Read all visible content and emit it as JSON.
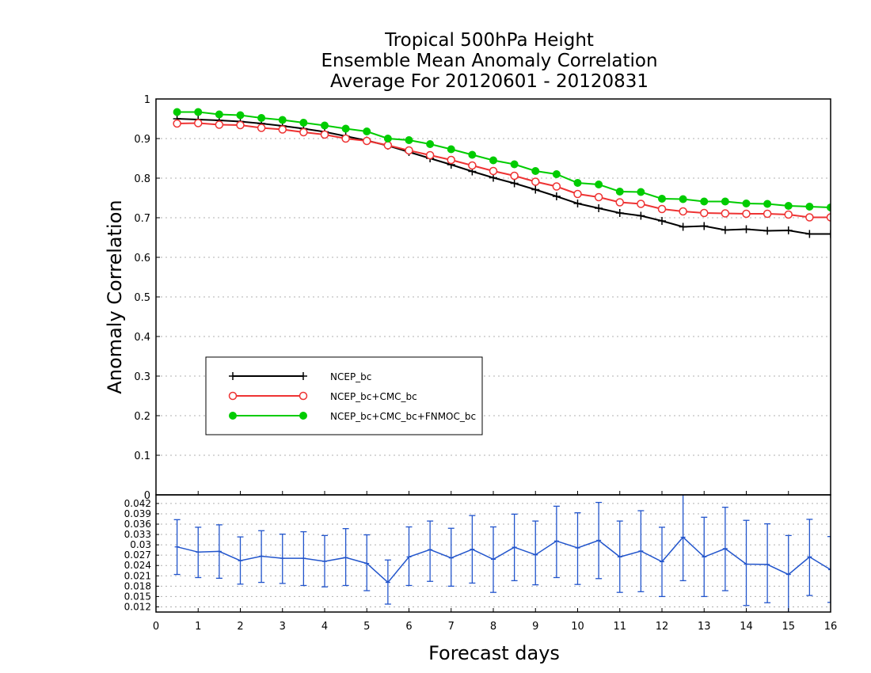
{
  "chart_data": [
    {
      "type": "line",
      "title_lines": [
        "Tropical 500hPa Height",
        "Ensemble Mean Anomaly Correlation",
        "Average For 20120601 - 20120831"
      ],
      "ylabel": "Anomaly Correlation",
      "xlabel": "Forecast days",
      "xlim": [
        0,
        16
      ],
      "ylim": [
        0,
        1
      ],
      "yticks": [
        "0",
        "0.1",
        "0.2",
        "0.3",
        "0.4",
        "0.5",
        "0.6",
        "0.7",
        "0.8",
        "0.9",
        "1"
      ],
      "xticks": [
        "0",
        "1",
        "2",
        "3",
        "4",
        "5",
        "6",
        "7",
        "8",
        "9",
        "10",
        "11",
        "12",
        "13",
        "14",
        "15",
        "16"
      ],
      "grid": true,
      "legend_position": "lower-left",
      "x": [
        0.5,
        1,
        1.5,
        2,
        2.5,
        3,
        3.5,
        4,
        4.5,
        5,
        5.5,
        6,
        6.5,
        7,
        7.5,
        8,
        8.5,
        9,
        9.5,
        10,
        10.5,
        11,
        11.5,
        12,
        12.5,
        13,
        13.5,
        14,
        14.5,
        15,
        15.5,
        16
      ],
      "series": [
        {
          "name": "NCEP_bc",
          "color": "#000000",
          "marker": "plus",
          "values": [
            0.95,
            0.948,
            0.946,
            0.943,
            0.938,
            0.932,
            0.925,
            0.917,
            0.906,
            0.895,
            0.882,
            0.866,
            0.85,
            0.834,
            0.817,
            0.801,
            0.787,
            0.771,
            0.754,
            0.736,
            0.724,
            0.712,
            0.705,
            0.692,
            0.677,
            0.679,
            0.669,
            0.671,
            0.667,
            0.668,
            0.659,
            0.659
          ]
        },
        {
          "name": "NCEP_bc+CMC_bc",
          "color": "#ee3333",
          "marker": "open-circle",
          "values": [
            0.938,
            0.939,
            0.935,
            0.934,
            0.927,
            0.923,
            0.916,
            0.91,
            0.9,
            0.894,
            0.883,
            0.87,
            0.858,
            0.846,
            0.832,
            0.818,
            0.806,
            0.791,
            0.779,
            0.76,
            0.752,
            0.739,
            0.735,
            0.722,
            0.716,
            0.712,
            0.711,
            0.71,
            0.71,
            0.708,
            0.701,
            0.701
          ]
        },
        {
          "name": "NCEP_bc+CMC_bc+FNMOC_bc",
          "color": "#00cc00",
          "marker": "filled-circle",
          "values": [
            0.967,
            0.967,
            0.961,
            0.959,
            0.952,
            0.947,
            0.94,
            0.933,
            0.925,
            0.918,
            0.9,
            0.896,
            0.886,
            0.873,
            0.859,
            0.845,
            0.835,
            0.818,
            0.81,
            0.788,
            0.784,
            0.766,
            0.765,
            0.748,
            0.747,
            0.741,
            0.741,
            0.736,
            0.735,
            0.73,
            0.728,
            0.726
          ]
        }
      ]
    },
    {
      "type": "line",
      "subtype": "errorbar",
      "xlim": [
        0,
        16
      ],
      "ylim": [
        0.0105,
        0.0445
      ],
      "yticks": [
        "0.012",
        "0.015",
        "0.018",
        "0.021",
        "0.024",
        "0.027",
        "0.03",
        "0.033",
        "0.036",
        "0.039",
        "0.042"
      ],
      "grid": true,
      "color": "#2255cc",
      "x": [
        0.5,
        1,
        1.5,
        2,
        2.5,
        3,
        3.5,
        4,
        4.5,
        5,
        5.5,
        6,
        6.5,
        7,
        7.5,
        8,
        8.5,
        9,
        9.5,
        10,
        10.5,
        11,
        11.5,
        12,
        12.5,
        13,
        13.5,
        14,
        14.5,
        15,
        15.5,
        16
      ],
      "values": [
        0.0294,
        0.0279,
        0.0281,
        0.0254,
        0.0267,
        0.0261,
        0.0261,
        0.0252,
        0.0263,
        0.0246,
        0.0191,
        0.0265,
        0.0286,
        0.0262,
        0.0287,
        0.0258,
        0.0293,
        0.0271,
        0.0311,
        0.0291,
        0.0313,
        0.0265,
        0.0282,
        0.0251,
        0.0322,
        0.0265,
        0.0289,
        0.0244,
        0.0243,
        0.0214,
        0.0265,
        0.0228
      ],
      "upper": [
        0.0373,
        0.0351,
        0.0358,
        0.0323,
        0.0341,
        0.0331,
        0.0338,
        0.0327,
        0.0347,
        0.0329,
        0.0256,
        0.0352,
        0.0369,
        0.0348,
        0.0385,
        0.0352,
        0.0389,
        0.0369,
        0.0412,
        0.0393,
        0.0423,
        0.0369,
        0.0399,
        0.0351,
        0.0448,
        0.038,
        0.0409,
        0.0371,
        0.0361,
        0.0327,
        0.0374,
        0.0324
      ],
      "lower": [
        0.0214,
        0.0205,
        0.0203,
        0.0186,
        0.0191,
        0.0188,
        0.0182,
        0.0178,
        0.0182,
        0.0167,
        0.0128,
        0.0182,
        0.0194,
        0.018,
        0.0189,
        0.0162,
        0.0196,
        0.0184,
        0.0205,
        0.0185,
        0.0202,
        0.0162,
        0.0164,
        0.015,
        0.0196,
        0.015,
        0.0167,
        0.0124,
        0.0132,
        0.0101,
        0.0153,
        0.0133
      ]
    }
  ]
}
